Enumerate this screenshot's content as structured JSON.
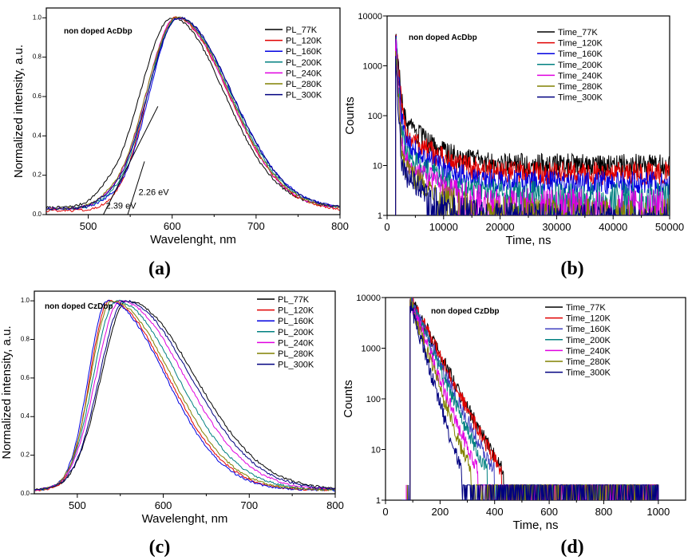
{
  "figure": {
    "panel_letters": [
      "(a)",
      "(b)",
      "(c)",
      "(d)"
    ]
  },
  "chart_data": [
    {
      "id": "a",
      "type": "line",
      "title": "non doped AcDbp",
      "xlabel": "Wavelenght, nm",
      "ylabel": "Normalized intensity, a.u.",
      "xlim": [
        450,
        800
      ],
      "ylim": [
        0,
        1.05
      ],
      "yscale": "linear",
      "xticks": [
        500,
        600,
        700,
        800
      ],
      "yticks": [
        0.0,
        0.2,
        0.4,
        0.6,
        0.8,
        1.0
      ],
      "ytick_labels": [
        "0.0",
        "0.2",
        "0.4",
        "0.6",
        "0.8",
        "1.0"
      ],
      "legend_position": "top-right",
      "annotations": [
        {
          "text": "2.26 eV",
          "x": 560,
          "y": 0.1
        },
        {
          "text": "2.39 eV",
          "x": 521,
          "y": 0.03
        }
      ],
      "series": [
        {
          "name": "PL_77K",
          "color": "#000000",
          "peak": 600,
          "width_left": 38,
          "width_right": 62,
          "baseline": 0.035,
          "lowbump": 0.025
        },
        {
          "name": "PL_120K",
          "color": "#e00000",
          "peak": 604,
          "width_left": 33,
          "width_right": 63,
          "baseline": 0.02,
          "lowbump": 0.0
        },
        {
          "name": "PL_160K",
          "color": "#0000e0",
          "peak": 607,
          "width_left": 34,
          "width_right": 64,
          "baseline": 0.03,
          "lowbump": 0.015
        },
        {
          "name": "PL_200K",
          "color": "#008080",
          "peak": 606,
          "width_left": 35,
          "width_right": 63,
          "baseline": 0.03,
          "lowbump": 0.015
        },
        {
          "name": "PL_240K",
          "color": "#e000e0",
          "peak": 605,
          "width_left": 36,
          "width_right": 62,
          "baseline": 0.03,
          "lowbump": 0.015
        },
        {
          "name": "PL_280K",
          "color": "#808000",
          "peak": 606,
          "width_left": 37,
          "width_right": 62,
          "baseline": 0.03,
          "lowbump": 0.015
        },
        {
          "name": "PL_300K",
          "color": "#000080",
          "peak": 608,
          "width_left": 37,
          "width_right": 63,
          "baseline": 0.03,
          "lowbump": 0.015
        }
      ]
    },
    {
      "id": "b",
      "type": "line",
      "title": "non doped AcDbp",
      "xlabel": "Time, ns",
      "ylabel": "Counts",
      "xlim": [
        0,
        50000
      ],
      "ylim": [
        1,
        10000
      ],
      "yscale": "log",
      "xticks": [
        0,
        10000,
        20000,
        30000,
        40000,
        50000
      ],
      "yticks": [
        1,
        10,
        100,
        1000,
        10000
      ],
      "ytick_labels": [
        "1",
        "10",
        "100",
        "1000",
        "10000"
      ],
      "legend_position": "top-right",
      "series": [
        {
          "name": "Time_77K",
          "color": "#000000",
          "t0": 1500,
          "peak": 5000,
          "tail": 10,
          "fast": 300
        },
        {
          "name": "Time_120K",
          "color": "#e00000",
          "t0": 1500,
          "peak": 4500,
          "tail": 7,
          "fast": 280
        },
        {
          "name": "Time_160K",
          "color": "#0000e0",
          "t0": 1500,
          "peak": 4000,
          "tail": 4.5,
          "fast": 260
        },
        {
          "name": "Time_200K",
          "color": "#008080",
          "t0": 1500,
          "peak": 3500,
          "tail": 2.8,
          "fast": 240
        },
        {
          "name": "Time_240K",
          "color": "#e000e0",
          "t0": 1500,
          "peak": 3000,
          "tail": 2.0,
          "fast": 220
        },
        {
          "name": "Time_280K",
          "color": "#808000",
          "t0": 1500,
          "peak": 2500,
          "tail": 1.3,
          "fast": 200
        },
        {
          "name": "Time_300K",
          "color": "#000080",
          "t0": 1500,
          "peak": 2000,
          "tail": 1.0,
          "fast": 180
        }
      ]
    },
    {
      "id": "c",
      "type": "line",
      "title": "non doped CzDbp",
      "xlabel": "Wavelenght, nm",
      "ylabel": "Normalized intensity, a.u.",
      "xlim": [
        450,
        800
      ],
      "ylim": [
        0,
        1.05
      ],
      "yscale": "linear",
      "xticks": [
        500,
        600,
        700,
        800
      ],
      "yticks": [
        0.0,
        0.2,
        0.4,
        0.6,
        0.8,
        1.0
      ],
      "ytick_labels": [
        "0.0",
        "0.2",
        "0.4",
        "0.6",
        "0.8",
        "1.0"
      ],
      "legend_position": "top-right",
      "series": [
        {
          "name": "PL_77K",
          "color": "#000000",
          "peak": 558,
          "width_left": 30,
          "width_right": 78,
          "baseline": 0.02,
          "lowbump": 0.0
        },
        {
          "name": "PL_120K",
          "color": "#e00000",
          "peak": 537,
          "width_left": 22,
          "width_right": 68,
          "baseline": 0.02,
          "lowbump": 0.0
        },
        {
          "name": "PL_160K",
          "color": "#0000e0",
          "peak": 535,
          "width_left": 22,
          "width_right": 67,
          "baseline": 0.02,
          "lowbump": 0.0
        },
        {
          "name": "PL_200K",
          "color": "#008080",
          "peak": 545,
          "width_left": 26,
          "width_right": 71,
          "baseline": 0.02,
          "lowbump": 0.0
        },
        {
          "name": "PL_240K",
          "color": "#e000e0",
          "peak": 550,
          "width_left": 28,
          "width_right": 74,
          "baseline": 0.02,
          "lowbump": 0.0
        },
        {
          "name": "PL_280K",
          "color": "#808000",
          "peak": 540,
          "width_left": 24,
          "width_right": 69,
          "baseline": 0.02,
          "lowbump": 0.0
        },
        {
          "name": "PL_300K",
          "color": "#000080",
          "peak": 555,
          "width_left": 29,
          "width_right": 76,
          "baseline": 0.02,
          "lowbump": 0.0
        }
      ]
    },
    {
      "id": "d",
      "type": "line",
      "title": "non doped CzDbp",
      "xlabel": "Time, ns",
      "ylabel": "Counts",
      "xlim": [
        0,
        1100
      ],
      "ylim": [
        1,
        10000
      ],
      "yscale": "log",
      "xticks": [
        0,
        200,
        400,
        600,
        800,
        1000
      ],
      "yticks": [
        1,
        10,
        100,
        1000,
        10000
      ],
      "ytick_labels": [
        "1",
        "10",
        "100",
        "1000",
        "10000"
      ],
      "legend_position": "top-right",
      "series": [
        {
          "name": "Time_77K",
          "color": "#000000",
          "t0": 90,
          "peak": 10000,
          "tau": 42,
          "end": 1000
        },
        {
          "name": "Time_120K",
          "color": "#e00000",
          "t0": 90,
          "peak": 10000,
          "tau": 41,
          "end": 1000
        },
        {
          "name": "Time_160K",
          "color": "#4040c0",
          "t0": 90,
          "peak": 9500,
          "tau": 38,
          "end": 1000
        },
        {
          "name": "Time_200K",
          "color": "#008080",
          "t0": 90,
          "peak": 9000,
          "tau": 35,
          "end": 1000
        },
        {
          "name": "Time_240K",
          "color": "#e000e0",
          "t0": 90,
          "peak": 8500,
          "tau": 31,
          "end": 1000
        },
        {
          "name": "Time_280K",
          "color": "#808000",
          "t0": 90,
          "peak": 8000,
          "tau": 28,
          "end": 1000
        },
        {
          "name": "Time_300K",
          "color": "#000080",
          "t0": 90,
          "peak": 7500,
          "tau": 24,
          "end": 1000
        }
      ]
    }
  ]
}
